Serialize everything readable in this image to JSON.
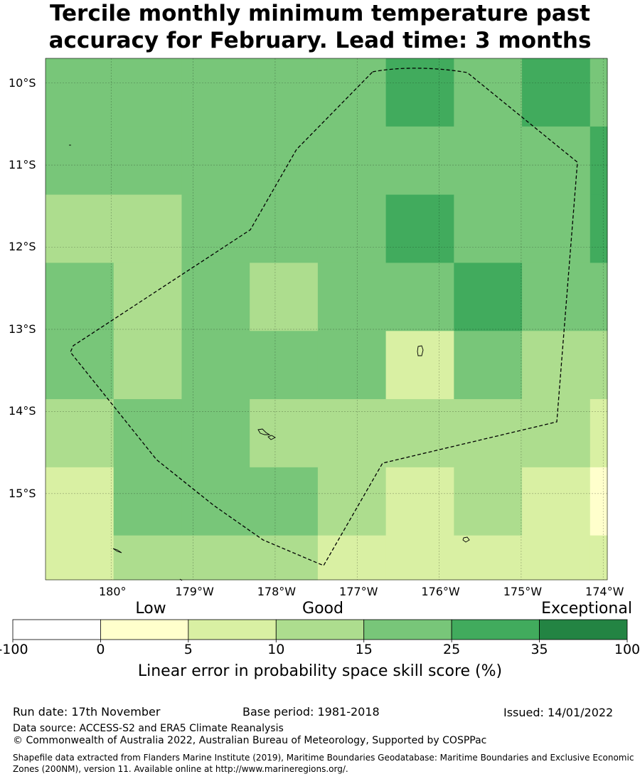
{
  "title_line1": "Tercile monthly minimum temperature past",
  "title_line2": "accuracy for February. Lead time: 3 months",
  "map": {
    "lon_range": [
      -180.8,
      -173.95
    ],
    "lat_range": [
      -16.05,
      -9.7
    ],
    "grid_lon_start": -180.8,
    "grid_lat_top": -9.7,
    "cell_deg": 0.83,
    "lat_ticks": [
      {
        "value": -10,
        "label": "10°S"
      },
      {
        "value": -11,
        "label": "11°S"
      },
      {
        "value": -12,
        "label": "12°S"
      },
      {
        "value": -13,
        "label": "13°S"
      },
      {
        "value": -14,
        "label": "14°S"
      },
      {
        "value": -15,
        "label": "15°S"
      }
    ],
    "lon_ticks": [
      {
        "value": -180,
        "label": "180°"
      },
      {
        "value": -179,
        "label": "179°W"
      },
      {
        "value": -178,
        "label": "178°W"
      },
      {
        "value": -177,
        "label": "177°W"
      },
      {
        "value": -176,
        "label": "176°W"
      },
      {
        "value": -175,
        "label": "175°W"
      },
      {
        "value": -174,
        "label": "174°W"
      }
    ],
    "grid_lines": true
  },
  "colorbar": {
    "categories": [
      {
        "label": "Low"
      },
      {
        "label": "Good"
      },
      {
        "label": "Exceptional"
      }
    ],
    "ticks": [
      "-100",
      "0",
      "5",
      "10",
      "15",
      "25",
      "35",
      "100"
    ],
    "colors": [
      "#ffffff",
      "#ffffcc",
      "#d9f0a3",
      "#addd8e",
      "#78c679",
      "#41ab5d",
      "#238443"
    ],
    "title": "Linear error in probability space skill score (%)"
  },
  "footer": {
    "run_date": "Run date: 17th November",
    "base_period": "Base period: 1981-2018",
    "issued": "Issued: 14/01/2022",
    "data_source": "Data source: ACCESS-S2 and ERA5 Climate Reanalysis",
    "copyright": "© Commonwealth of Australia 2022, Australian Bureau of Meteorology, Supported by COSPPac",
    "shapefile": "Shapefile data extracted from Flanders Marine Institute (2019), Maritime Boundaries Geodatabase: Maritime Boundaries and Exclusive Economic Zones (200NM), version 11. Available online at http://www.marineregions.org/."
  }
}
